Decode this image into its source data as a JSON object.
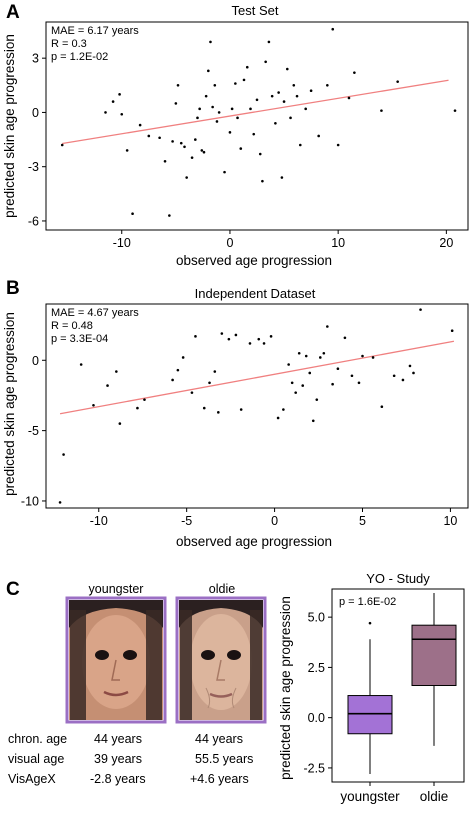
{
  "panels": {
    "A": {
      "letter": "A",
      "chart_data": {
        "type": "scatter",
        "title": "Test Set",
        "xlabel": "observed age progression",
        "ylabel": "predicted skin age progression",
        "xlim": [
          -17,
          22
        ],
        "ylim": [
          -6.5,
          5.0
        ],
        "xticks": [
          -10,
          0,
          10,
          20
        ],
        "yticks": [
          -6,
          -3,
          0,
          3
        ],
        "ytick_labels": [
          "-6",
          "-3",
          "0",
          "3"
        ],
        "stats": [
          "MAE = 6.17 years",
          "R = 0.3",
          "p = 1.2E-02"
        ],
        "regression": {
          "x": [
            -15.5,
            20.2
          ],
          "y": [
            -1.72,
            1.78
          ],
          "color": "#f08080"
        },
        "points": [
          [
            -15.5,
            -1.8
          ],
          [
            -11.5,
            0
          ],
          [
            -10.8,
            0.6
          ],
          [
            -10.2,
            1.0
          ],
          [
            -10,
            -0.1
          ],
          [
            -9.5,
            -2.1
          ],
          [
            -9,
            -5.6
          ],
          [
            -8.3,
            -0.7
          ],
          [
            -7.5,
            -1.3
          ],
          [
            -6.5,
            -1.4
          ],
          [
            -6,
            -2.7
          ],
          [
            -5.6,
            -5.7
          ],
          [
            -5.3,
            -1.6
          ],
          [
            -5,
            0.5
          ],
          [
            -4.8,
            1.5
          ],
          [
            -4.5,
            -1.7
          ],
          [
            -4.2,
            -1.9
          ],
          [
            -4,
            -3.6
          ],
          [
            -3.5,
            -2.5
          ],
          [
            -3.2,
            -1.5
          ],
          [
            -3,
            -0.3
          ],
          [
            -2.8,
            0.2
          ],
          [
            -2.6,
            -2.1
          ],
          [
            -2.4,
            -2.2
          ],
          [
            -2.2,
            0.9
          ],
          [
            -2,
            2.3
          ],
          [
            -1.8,
            3.9
          ],
          [
            -1.6,
            0.3
          ],
          [
            -1.4,
            1.5
          ],
          [
            -1.2,
            -0.5
          ],
          [
            -1,
            0
          ],
          [
            -0.5,
            -3.3
          ],
          [
            0,
            -1.1
          ],
          [
            0.2,
            0.2
          ],
          [
            0.5,
            1.6
          ],
          [
            0.7,
            -0.3
          ],
          [
            1,
            -2.0
          ],
          [
            1.3,
            1.8
          ],
          [
            1.6,
            2.5
          ],
          [
            1.9,
            0.2
          ],
          [
            2.2,
            -1.2
          ],
          [
            2.5,
            0.7
          ],
          [
            2.8,
            -2.3
          ],
          [
            3,
            -3.8
          ],
          [
            3.3,
            2.8
          ],
          [
            3.6,
            3.9
          ],
          [
            3.9,
            0.9
          ],
          [
            4.2,
            -0.6
          ],
          [
            4.5,
            1.1
          ],
          [
            4.8,
            -3.6
          ],
          [
            5,
            0.6
          ],
          [
            5.3,
            2.4
          ],
          [
            5.6,
            -0.3
          ],
          [
            5.9,
            1.5
          ],
          [
            6.2,
            0.9
          ],
          [
            6.5,
            -1.8
          ],
          [
            7,
            0.2
          ],
          [
            7.5,
            1.2
          ],
          [
            8.2,
            -1.3
          ],
          [
            9,
            1.5
          ],
          [
            9.5,
            4.6
          ],
          [
            10,
            -1.8
          ],
          [
            11,
            0.8
          ],
          [
            11.5,
            2.2
          ],
          [
            14,
            0.1
          ],
          [
            15.5,
            1.7
          ],
          [
            20.8,
            0.1
          ]
        ]
      }
    },
    "B": {
      "letter": "B",
      "chart_data": {
        "type": "scatter",
        "title": "Independent Dataset",
        "xlabel": "observed age progression",
        "ylabel": "predicted skin age progression",
        "xlim": [
          -13,
          11
        ],
        "ylim": [
          -10.5,
          4.0
        ],
        "xticks": [
          -10,
          -5,
          0,
          5,
          10
        ],
        "yticks": [
          -10,
          -5,
          0
        ],
        "ytick_labels": [
          "-10",
          "-5",
          "0"
        ],
        "stats": [
          "MAE = 4.67 years",
          "R = 0.48",
          "p = 3.3E-04"
        ],
        "regression": {
          "x": [
            -12.2,
            10.2
          ],
          "y": [
            -3.8,
            1.35
          ],
          "color": "#f08080"
        },
        "points": [
          [
            -12.2,
            -10.1
          ],
          [
            -12,
            -6.7
          ],
          [
            -11,
            -0.3
          ],
          [
            -10.3,
            -3.2
          ],
          [
            -9.5,
            -1.8
          ],
          [
            -9,
            -0.8
          ],
          [
            -8.8,
            -4.5
          ],
          [
            -7.8,
            -3.4
          ],
          [
            -7.4,
            -2.8
          ],
          [
            -5.8,
            -1.4
          ],
          [
            -5.5,
            -0.7
          ],
          [
            -5.2,
            0.2
          ],
          [
            -4.7,
            -2.3
          ],
          [
            -4.5,
            1.7
          ],
          [
            -4,
            -3.4
          ],
          [
            -3.7,
            -1.6
          ],
          [
            -3.4,
            -0.8
          ],
          [
            -3.2,
            -3.7
          ],
          [
            -3,
            1.9
          ],
          [
            -2.6,
            1.5
          ],
          [
            -2.2,
            1.8
          ],
          [
            -1.9,
            -3.5
          ],
          [
            -1.4,
            1.2
          ],
          [
            -0.9,
            1.5
          ],
          [
            -0.6,
            1.2
          ],
          [
            -0.2,
            1.7
          ],
          [
            0.2,
            -4.1
          ],
          [
            0.5,
            -3.5
          ],
          [
            0.8,
            -0.3
          ],
          [
            1,
            -1.6
          ],
          [
            1.2,
            -2.3
          ],
          [
            1.4,
            0.5
          ],
          [
            1.6,
            -1.8
          ],
          [
            1.8,
            0.3
          ],
          [
            2,
            -0.9
          ],
          [
            2.2,
            -4.3
          ],
          [
            2.4,
            -2.8
          ],
          [
            2.6,
            0.2
          ],
          [
            2.8,
            0.5
          ],
          [
            3,
            2.4
          ],
          [
            3.3,
            -1.7
          ],
          [
            3.6,
            -0.6
          ],
          [
            4,
            1.6
          ],
          [
            4.4,
            -1.1
          ],
          [
            4.8,
            -1.6
          ],
          [
            5,
            0.3
          ],
          [
            5.6,
            0.2
          ],
          [
            6.1,
            -3.3
          ],
          [
            6.8,
            -1.1
          ],
          [
            7.3,
            -1.4
          ],
          [
            7.7,
            -0.4
          ],
          [
            7.9,
            -0.9
          ],
          [
            8.3,
            3.6
          ],
          [
            10.1,
            2.1
          ]
        ]
      }
    },
    "C": {
      "letter": "C",
      "faces": {
        "headers": [
          "youngster",
          "oldie"
        ],
        "rows": [
          {
            "label": "chron. age",
            "values": [
              "44 years",
              "44 years"
            ]
          },
          {
            "label": "visual age",
            "values": [
              "39 years",
              "55.5 years"
            ]
          },
          {
            "label": "VisAgeX",
            "values": [
              "-2.8 years",
              "+4.6 years"
            ]
          }
        ]
      },
      "chart_data": {
        "type": "box",
        "title": "YO - Study",
        "xlabel": "",
        "ylabel": "predicted skin age progression",
        "ylim": [
          -3.2,
          6.4
        ],
        "yticks": [
          -2.5,
          0,
          2.5,
          5
        ],
        "ytick_labels": [
          "-2.5",
          "0.0",
          "2.5",
          "5.0"
        ],
        "stats": [
          "p = 1.6E-02"
        ],
        "categories": [
          "youngster",
          "oldie"
        ],
        "boxes": [
          {
            "name": "youngster",
            "min": -2.8,
            "q1": -0.8,
            "median": 0.2,
            "q3": 1.1,
            "max": 3.9,
            "outliers": [
              4.7
            ],
            "color": "#a372d6"
          },
          {
            "name": "oldie",
            "min": -1.4,
            "q1": 1.6,
            "median": 3.9,
            "q3": 4.6,
            "max": 6.2,
            "outliers": [],
            "color": "#9d7089"
          }
        ]
      }
    }
  }
}
